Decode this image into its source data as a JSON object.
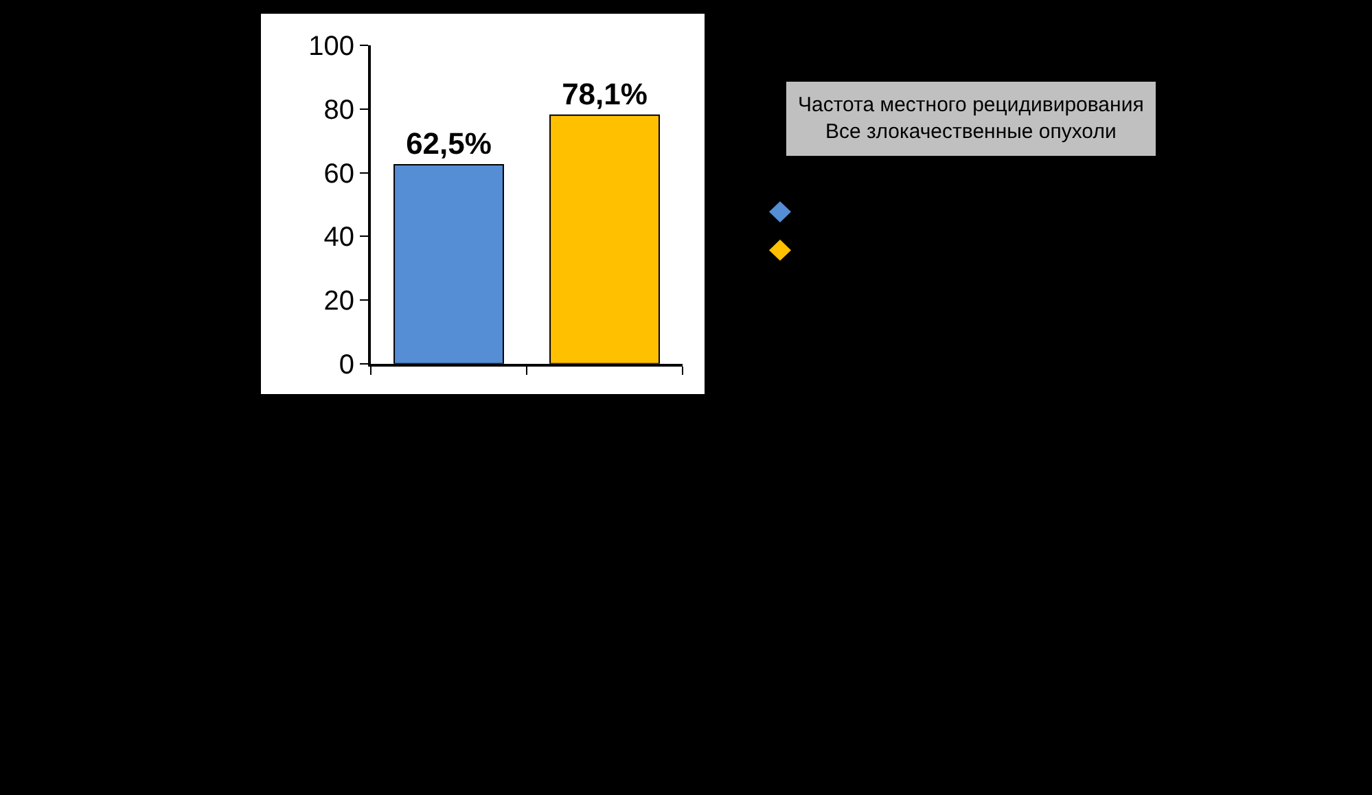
{
  "chart_data": {
    "type": "bar",
    "title": "Частота местного рецидивирования\nВсе злокачественные опухоли",
    "categories": [
      null,
      null
    ],
    "series": [
      {
        "color": "#558ed5",
        "values": [
          62.5,
          null
        ],
        "value_labels": [
          "62,5%",
          null
        ]
      },
      {
        "color": "#ffc000",
        "values": [
          null,
          78.1
        ],
        "value_labels": [
          null,
          "78,1%"
        ]
      }
    ],
    "ylim": [
      0,
      100
    ],
    "yticks": [
      0,
      20,
      40,
      60,
      80,
      100
    ]
  }
}
